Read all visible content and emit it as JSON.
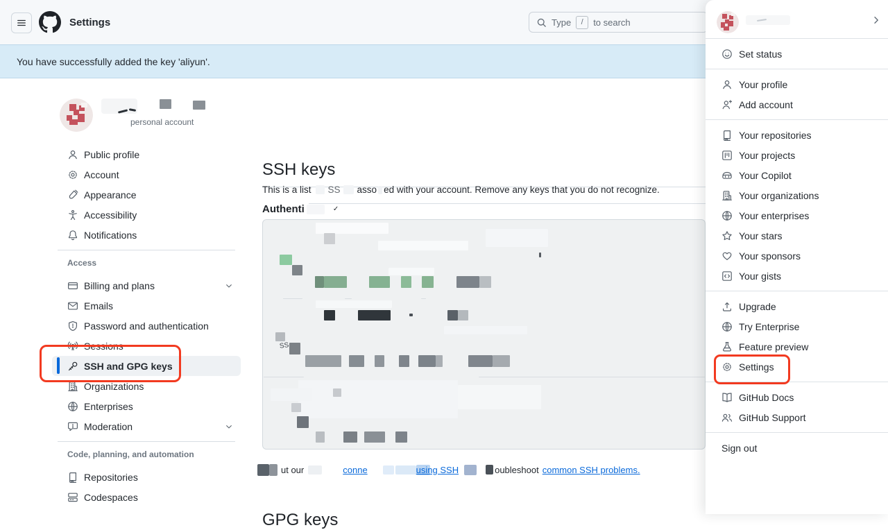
{
  "header": {
    "title": "Settings",
    "search": {
      "pre": "Type",
      "kbd": "/",
      "post": "to search"
    }
  },
  "banner": {
    "message": "You have successfully added the key 'aliyun'."
  },
  "sidebar": {
    "profile_caption": "personal account",
    "groups": [
      {
        "header": "",
        "items": [
          {
            "label": "Public profile",
            "icon": "person"
          },
          {
            "label": "Account",
            "icon": "gear"
          },
          {
            "label": "Appearance",
            "icon": "paintbrush"
          },
          {
            "label": "Accessibility",
            "icon": "accessibility"
          },
          {
            "label": "Notifications",
            "icon": "bell"
          }
        ]
      },
      {
        "header": "Access",
        "items": [
          {
            "label": "Billing and plans",
            "icon": "credit-card",
            "chevron": true
          },
          {
            "label": "Emails",
            "icon": "mail"
          },
          {
            "label": "Password and authentication",
            "icon": "shield-lock"
          },
          {
            "label": "Sessions",
            "icon": "broadcast"
          },
          {
            "label": "SSH and GPG keys",
            "icon": "key",
            "selected": true
          },
          {
            "label": "Organizations",
            "icon": "organization"
          },
          {
            "label": "Enterprises",
            "icon": "globe"
          },
          {
            "label": "Moderation",
            "icon": "comment",
            "chevron": true
          }
        ]
      },
      {
        "header": "Code, planning, and automation",
        "items": [
          {
            "label": "Repositories",
            "icon": "repo"
          },
          {
            "label": "Codespaces",
            "icon": "codespaces"
          }
        ]
      }
    ]
  },
  "main": {
    "title": "SSH keys",
    "description_parts": {
      "p1": "This is a list",
      "frag1": "SS",
      "frag2": "asso",
      "p2": "ed with your account. Remove any keys that you do not recognize."
    },
    "subheading_fragment": "Authenti",
    "subheading_mark": "✓",
    "key_fragment": "SS",
    "footer_parts": {
      "f1": "ut our",
      "link1": "conne",
      "link2": "using SSH",
      "f2": "oubleshoot",
      "link3": "common SSH problems."
    },
    "gpg_title": "GPG keys"
  },
  "user_menu": {
    "sections": [
      {
        "items": [
          {
            "label": "Set status",
            "icon": "smiley"
          }
        ]
      },
      {
        "items": [
          {
            "label": "Your profile",
            "icon": "person"
          },
          {
            "label": "Add account",
            "icon": "person-add"
          }
        ]
      },
      {
        "items": [
          {
            "label": "Your repositories",
            "icon": "repo"
          },
          {
            "label": "Your projects",
            "icon": "project"
          },
          {
            "label": "Your Copilot",
            "icon": "copilot"
          },
          {
            "label": "Your organizations",
            "icon": "organization"
          },
          {
            "label": "Your enterprises",
            "icon": "globe"
          },
          {
            "label": "Your stars",
            "icon": "star"
          },
          {
            "label": "Your sponsors",
            "icon": "heart"
          },
          {
            "label": "Your gists",
            "icon": "code-square"
          }
        ]
      },
      {
        "items": [
          {
            "label": "Upgrade",
            "icon": "upload"
          },
          {
            "label": "Try Enterprise",
            "icon": "globe"
          },
          {
            "label": "Feature preview",
            "icon": "beaker"
          },
          {
            "label": "Settings",
            "icon": "gear",
            "annotated": true
          }
        ]
      },
      {
        "items": [
          {
            "label": "GitHub Docs",
            "icon": "book"
          },
          {
            "label": "GitHub Support",
            "icon": "people"
          }
        ]
      },
      {
        "items": [
          {
            "label": "Sign out",
            "icon": null
          }
        ]
      }
    ]
  },
  "colors": {
    "annotation": "#f23a20",
    "accent": "#0969da",
    "banner_bg": "#d7ebf7",
    "link": "#0969da",
    "selected_bar": "#0969da"
  }
}
